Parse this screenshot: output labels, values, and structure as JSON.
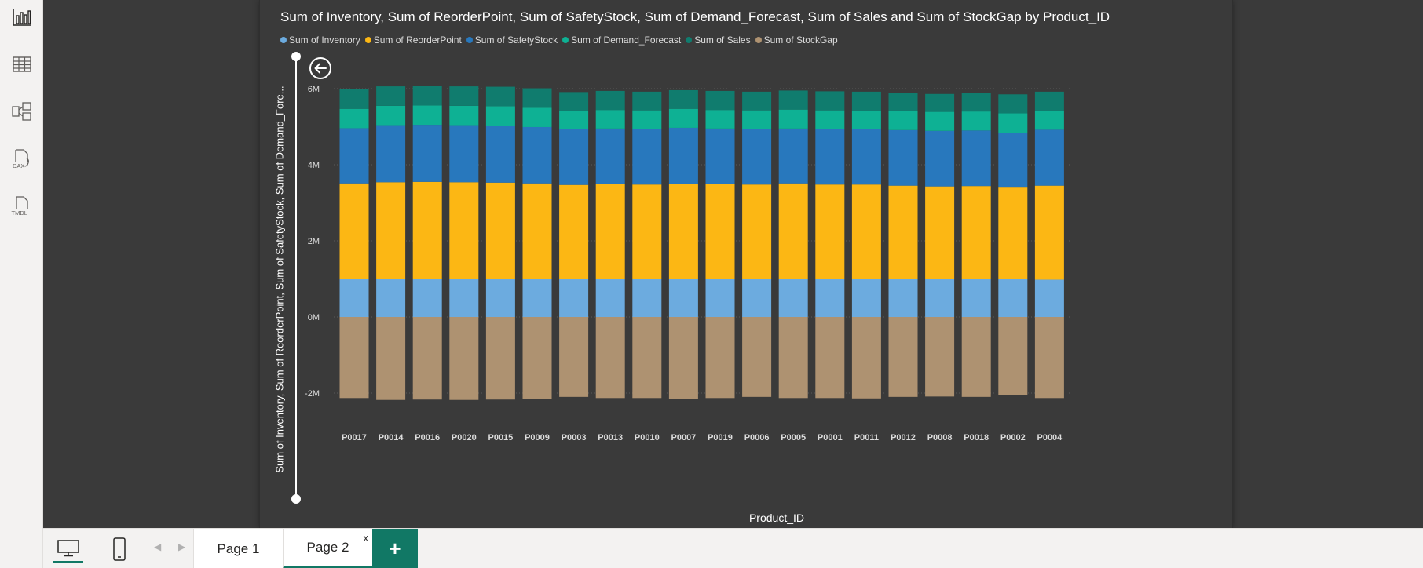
{
  "left_rail": {
    "items": [
      {
        "name": "report-view",
        "icon": "bar-chart-icon"
      },
      {
        "name": "table-view",
        "icon": "table-grid-icon"
      },
      {
        "name": "model-view",
        "icon": "model-diagram-icon"
      },
      {
        "name": "dax-query-view",
        "icon": "dax-icon",
        "label": "DAX"
      },
      {
        "name": "tmdl-view",
        "icon": "tmdl-icon",
        "label": "TMDL"
      }
    ]
  },
  "visual": {
    "title": "Sum of Inventory, Sum of ReorderPoint, Sum of SafetyStock, Sum of Demand_Forecast, Sum of Sales and Sum of StockGap by Product_ID",
    "y_axis_title": "Sum of Inventory, Sum of ReorderPoint, Sum of SafetyStock, Sum of Demand_Fore...",
    "x_axis_title": "Product_ID",
    "back_icon": "back-arrow-icon"
  },
  "chart_data": {
    "type": "bar",
    "stacked": true,
    "title": "Sum of Inventory, Sum of ReorderPoint, Sum of SafetyStock, Sum of Demand_Forecast, Sum of Sales and Sum of StockGap by Product_ID",
    "xlabel": "Product_ID",
    "ylabel": "Sum of Inventory, Sum of ReorderPoint, Sum of SafetyStock, Sum of Demand_Fore...",
    "ylim": [
      -2400000,
      6500000
    ],
    "yticks": [
      -2000000,
      0,
      2000000,
      4000000,
      6000000
    ],
    "ytick_labels": [
      "-2M",
      "0M",
      "2M",
      "4M",
      "6M"
    ],
    "grid": true,
    "legend_position": "top-left",
    "categories": [
      "P0017",
      "P0014",
      "P0016",
      "P0020",
      "P0015",
      "P0009",
      "P0003",
      "P0013",
      "P0010",
      "P0007",
      "P0019",
      "P0006",
      "P0005",
      "P0001",
      "P0011",
      "P0012",
      "P0008",
      "P0018",
      "P0002",
      "P0004"
    ],
    "series": [
      {
        "name": "Sum of Inventory",
        "color": "#6cabdf",
        "values": [
          1010000,
          1010000,
          1010000,
          1010000,
          1010000,
          1010000,
          1000000,
          1000000,
          1000000,
          1000000,
          1000000,
          990000,
          1000000,
          990000,
          990000,
          990000,
          990000,
          990000,
          990000,
          980000
        ]
      },
      {
        "name": "Sum of ReorderPoint",
        "color": "#fcb714",
        "values": [
          2500000,
          2530000,
          2540000,
          2530000,
          2520000,
          2500000,
          2470000,
          2490000,
          2480000,
          2500000,
          2490000,
          2490000,
          2510000,
          2490000,
          2490000,
          2460000,
          2440000,
          2450000,
          2430000,
          2470000
        ]
      },
      {
        "name": "Sum of SafetyStock",
        "color": "#2878bd",
        "values": [
          1450000,
          1500000,
          1500000,
          1500000,
          1500000,
          1480000,
          1460000,
          1460000,
          1460000,
          1470000,
          1460000,
          1460000,
          1440000,
          1460000,
          1450000,
          1460000,
          1460000,
          1460000,
          1420000,
          1470000
        ]
      },
      {
        "name": "Sum of Demand_Forecast",
        "color": "#0eb194",
        "values": [
          510000,
          510000,
          510000,
          510000,
          510000,
          510000,
          490000,
          490000,
          490000,
          500000,
          490000,
          490000,
          500000,
          490000,
          490000,
          500000,
          500000,
          500000,
          510000,
          500000
        ]
      },
      {
        "name": "Sum of Sales",
        "color": "#107c6e",
        "values": [
          510000,
          510000,
          510000,
          510000,
          510000,
          510000,
          490000,
          500000,
          490000,
          490000,
          500000,
          490000,
          500000,
          500000,
          500000,
          480000,
          470000,
          480000,
          500000,
          500000
        ]
      },
      {
        "name": "Sum of StockGap",
        "color": "#ae9271",
        "values": [
          -2130000,
          -2180000,
          -2170000,
          -2180000,
          -2170000,
          -2160000,
          -2100000,
          -2130000,
          -2130000,
          -2150000,
          -2130000,
          -2100000,
          -2130000,
          -2130000,
          -2140000,
          -2100000,
          -2090000,
          -2100000,
          -2050000,
          -2130000
        ]
      }
    ]
  },
  "bottom_bar": {
    "desktop_icon": "desktop-icon",
    "mobile_icon": "mobile-icon",
    "prev_arrow": "◀",
    "next_arrow": "▶",
    "tabs": [
      {
        "label": "Page 1",
        "active": false
      },
      {
        "label": "Page 2",
        "active": true,
        "close": "x"
      }
    ],
    "add_label": "+"
  }
}
